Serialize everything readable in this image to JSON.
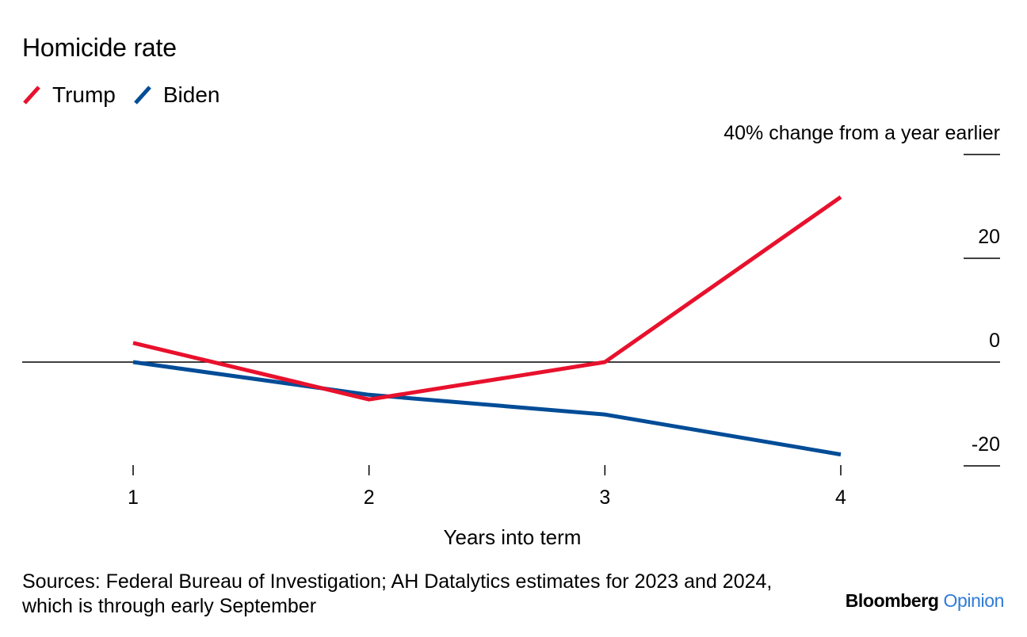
{
  "chart_data": {
    "type": "line",
    "title": "Homicide rate",
    "ylabel": "% change from a year earlier",
    "xlabel": "Years into term",
    "x": [
      1,
      2,
      3,
      4
    ],
    "xticks": [
      "1",
      "2",
      "3",
      "4"
    ],
    "yticks": [
      40,
      20,
      0,
      -20
    ],
    "ytick_labels": [
      "40",
      "20",
      "0",
      "-20"
    ],
    "ylim": [
      -20,
      40
    ],
    "series": [
      {
        "name": "Trump",
        "color": "#e8112d",
        "values": [
          3.7,
          -7.2,
          0.0,
          31.8
        ]
      },
      {
        "name": "Biden",
        "color": "#004c97",
        "values": [
          0.0,
          -6.3,
          -10.1,
          -17.8
        ]
      }
    ],
    "legend": "top-left",
    "grid": false
  },
  "footer": {
    "source": "Sources: Federal Bureau of Investigation; AH Datalytics estimates for 2023 and 2024, which is through early September",
    "brand_primary": "Bloomberg",
    "brand_secondary": "Opinion"
  }
}
